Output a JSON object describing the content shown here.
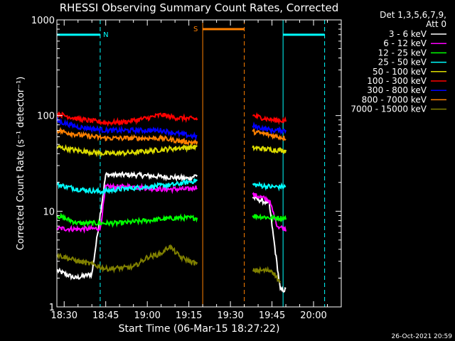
{
  "chart_data": {
    "type": "line",
    "title": "RHESSI Observing Summary Count Rates, Corrected",
    "xlabel": "Start Time (06-Mar-15 18:27:22)",
    "ylabel": "Corrected Count Rate (s⁻¹ detector⁻¹)",
    "yscale": "log",
    "ylim": [
      1,
      1000
    ],
    "xlim": [
      "18:27:22",
      "20:10:00"
    ],
    "xticks": [
      "18:30",
      "18:45",
      "19:00",
      "19:15",
      "19:30",
      "19:45",
      "20:00"
    ],
    "yticks": [
      "1",
      "10",
      "100",
      "1000"
    ],
    "grid": false,
    "legend_title": [
      "Det 1,3,5,6,7,9,",
      "Att 0"
    ],
    "legend_placement": "right",
    "footer_timestamp": "26-Oct-2021 20:59",
    "flag_bars": [
      {
        "label": "N",
        "color": "#00ffff",
        "start": "18:27:22",
        "end": "18:43:00",
        "level": 700
      },
      {
        "label": "S",
        "color": "#ff8000",
        "start": "19:20:00",
        "end": "19:35:00",
        "level": 800
      },
      {
        "label": "",
        "color": "#00ffff",
        "start": "19:49:00",
        "end": "20:04:00",
        "level": 700
      }
    ],
    "vertical_markers": [
      {
        "time": "18:27:22",
        "color": "#00ffff",
        "style": "solid"
      },
      {
        "time": "18:43:00",
        "color": "#00ffff",
        "style": "dashed"
      },
      {
        "time": "19:20:00",
        "color": "#ff8000",
        "style": "solid"
      },
      {
        "time": "19:35:00",
        "color": "#ff8000",
        "style": "dashed"
      },
      {
        "time": "19:49:00",
        "color": "#00ffff",
        "style": "solid"
      },
      {
        "time": "20:04:00",
        "color": "#00ffff",
        "style": "dashed"
      }
    ],
    "data_gaps": [
      [
        "19:20:00",
        "19:38:00"
      ]
    ],
    "series": [
      {
        "name": "3 - 6 keV",
        "color": "#ffffff",
        "points": [
          [
            "18:27:22",
            2.4
          ],
          [
            "18:34:00",
            2.0
          ],
          [
            "18:40:00",
            2.2
          ],
          [
            "18:45:00",
            24
          ],
          [
            "18:55:00",
            24
          ],
          [
            "19:05:00",
            23
          ],
          [
            "19:15:00",
            22
          ],
          [
            "19:18:00",
            24
          ],
          [
            "19:38:00",
            14
          ],
          [
            "19:44:00",
            12
          ],
          [
            "19:48:00",
            1.5
          ],
          [
            "19:50:00",
            1.5
          ]
        ]
      },
      {
        "name": "6 - 12 keV",
        "color": "#ff00ff",
        "points": [
          [
            "18:27:22",
            6.6
          ],
          [
            "18:35:00",
            6.5
          ],
          [
            "18:43:00",
            6.6
          ],
          [
            "18:45:00",
            18
          ],
          [
            "18:55:00",
            18
          ],
          [
            "19:05:00",
            17
          ],
          [
            "19:15:00",
            17
          ],
          [
            "19:18:00",
            18
          ],
          [
            "19:38:00",
            15
          ],
          [
            "19:44:00",
            13
          ],
          [
            "19:47:00",
            7
          ],
          [
            "19:50:00",
            6.5
          ]
        ]
      },
      {
        "name": "12 - 25 keV",
        "color": "#00ff00",
        "points": [
          [
            "18:27:22",
            9
          ],
          [
            "18:35:00",
            7.5
          ],
          [
            "18:43:00",
            7.5
          ],
          [
            "18:50:00",
            7.5
          ],
          [
            "19:00:00",
            8
          ],
          [
            "19:10:00",
            8.5
          ],
          [
            "19:18:00",
            8.5
          ],
          [
            "19:38:00",
            9
          ],
          [
            "19:45:00",
            8.5
          ],
          [
            "19:50:00",
            8.5
          ]
        ]
      },
      {
        "name": "25 - 50 keV",
        "color": "#00ffff",
        "points": [
          [
            "18:27:22",
            19
          ],
          [
            "18:35:00",
            17
          ],
          [
            "18:43:00",
            16
          ],
          [
            "18:50:00",
            17
          ],
          [
            "19:00:00",
            18
          ],
          [
            "19:10:00",
            19
          ],
          [
            "19:18:00",
            21
          ],
          [
            "19:38:00",
            19
          ],
          [
            "19:45:00",
            18
          ],
          [
            "19:50:00",
            18
          ]
        ]
      },
      {
        "name": "50 - 100 keV",
        "color": "#dcdc00",
        "points": [
          [
            "18:27:22",
            47
          ],
          [
            "18:35:00",
            43
          ],
          [
            "18:45:00",
            40
          ],
          [
            "18:55:00",
            41
          ],
          [
            "19:05:00",
            44
          ],
          [
            "19:12:00",
            46
          ],
          [
            "19:18:00",
            47
          ],
          [
            "19:38:00",
            46
          ],
          [
            "19:45:00",
            44
          ],
          [
            "19:50:00",
            43
          ]
        ]
      },
      {
        "name": "100 - 300 keV",
        "color": "#ff0000",
        "points": [
          [
            "18:27:22",
            105
          ],
          [
            "18:35:00",
            92
          ],
          [
            "18:45:00",
            84
          ],
          [
            "18:52:00",
            86
          ],
          [
            "19:00:00",
            94
          ],
          [
            "19:05:00",
            102
          ],
          [
            "19:10:00",
            95
          ],
          [
            "19:18:00",
            92
          ],
          [
            "19:38:00",
            100
          ],
          [
            "19:45:00",
            90
          ],
          [
            "19:50:00",
            88
          ]
        ]
      },
      {
        "name": "300 - 800 keV",
        "color": "#0000ff",
        "points": [
          [
            "18:27:22",
            88
          ],
          [
            "18:35:00",
            76
          ],
          [
            "18:45:00",
            70
          ],
          [
            "18:55:00",
            70
          ],
          [
            "19:05:00",
            70
          ],
          [
            "19:12:00",
            64
          ],
          [
            "19:18:00",
            60
          ],
          [
            "19:38:00",
            78
          ],
          [
            "19:45:00",
            70
          ],
          [
            "19:50:00",
            70
          ]
        ]
      },
      {
        "name": "800 - 7000 keV",
        "color": "#ff8000",
        "points": [
          [
            "18:27:22",
            70
          ],
          [
            "18:35:00",
            63
          ],
          [
            "18:45:00",
            58
          ],
          [
            "18:55:00",
            58
          ],
          [
            "19:05:00",
            58
          ],
          [
            "19:12:00",
            54
          ],
          [
            "19:18:00",
            52
          ],
          [
            "19:38:00",
            68
          ],
          [
            "19:45:00",
            62
          ],
          [
            "19:50:00",
            58
          ]
        ]
      },
      {
        "name": "7000 - 15000 keV",
        "color": "#808000",
        "points": [
          [
            "18:27:22",
            3.5
          ],
          [
            "18:35:00",
            3.0
          ],
          [
            "18:40:00",
            2.8
          ],
          [
            "18:45:00",
            2.5
          ],
          [
            "18:55:00",
            2.6
          ],
          [
            "19:00:00",
            3.3
          ],
          [
            "19:05:00",
            3.6
          ],
          [
            "19:08:00",
            4.3
          ],
          [
            "19:12:00",
            3.3
          ],
          [
            "19:18:00",
            2.8
          ],
          [
            "19:38:00",
            2.4
          ],
          [
            "19:45:00",
            2.4
          ],
          [
            "19:48:00",
            1.8
          ]
        ]
      }
    ]
  }
}
